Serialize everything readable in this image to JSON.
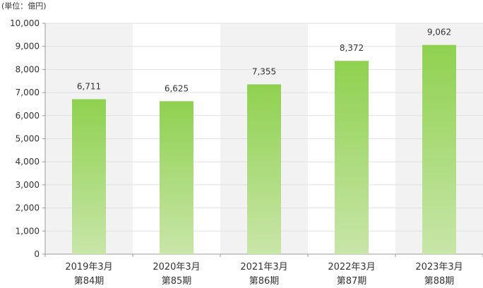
{
  "chart_data": {
    "type": "bar",
    "unit_label": "(単位：億円)",
    "categories": [
      [
        "2019年3月",
        "第84期"
      ],
      [
        "2020年3月",
        "第85期"
      ],
      [
        "2021年3月",
        "第86期"
      ],
      [
        "2022年3月",
        "第87期"
      ],
      [
        "2023年3月",
        "第88期"
      ]
    ],
    "values": [
      6711,
      6625,
      7355,
      8372,
      9062
    ],
    "value_labels": [
      "6,711",
      "6,625",
      "7,355",
      "8,372",
      "9,062"
    ],
    "ylim": [
      0,
      10000
    ],
    "yticks": [
      0,
      1000,
      2000,
      3000,
      4000,
      5000,
      6000,
      7000,
      8000,
      9000,
      10000
    ],
    "ytick_labels": [
      "0",
      "1,000",
      "2,000",
      "3,000",
      "4,000",
      "5,000",
      "6,000",
      "7,000",
      "8,000",
      "9,000",
      "10,000"
    ],
    "grid": true,
    "legend": "none",
    "colors": {
      "bar_top": "#8fd14f",
      "bar_bottom": "#c8e6a8",
      "band": "#f2f2f2",
      "grid": "#e0e0e0",
      "axis": "#999999"
    }
  }
}
